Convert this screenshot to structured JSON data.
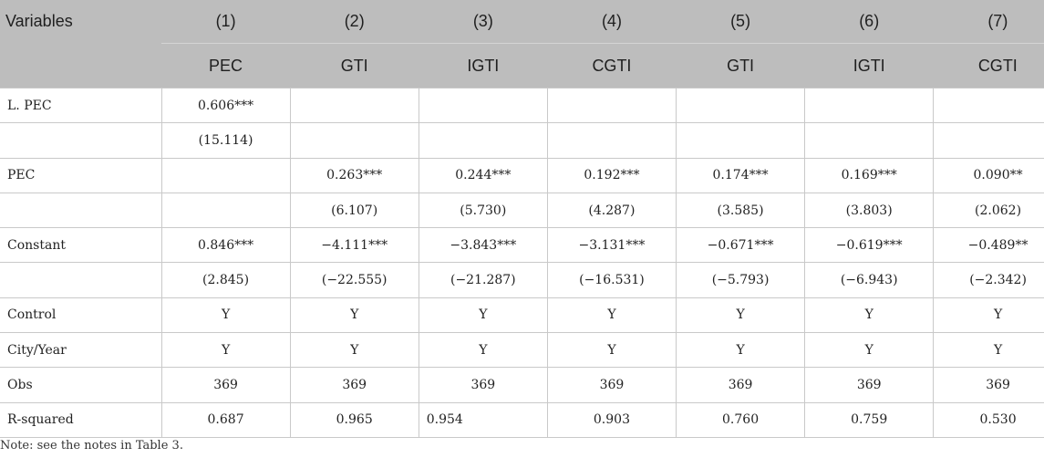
{
  "header": {
    "variables_label": "Variables",
    "columns": [
      "(1)",
      "(2)",
      "(3)",
      "(4)",
      "(5)",
      "(6)",
      "(7)"
    ],
    "dependent_vars": [
      "PEC",
      "GTI",
      "IGTI",
      "CGTI",
      "GTI",
      "IGTI",
      "CGTI"
    ]
  },
  "rows": [
    {
      "label": "L. PEC",
      "cells": [
        "0.606***",
        "",
        "",
        "",
        "",
        "",
        ""
      ]
    },
    {
      "label": "",
      "cells": [
        "(15.114)",
        "",
        "",
        "",
        "",
        "",
        ""
      ]
    },
    {
      "label": "PEC",
      "cells": [
        "",
        "0.263***",
        "0.244***",
        "0.192***",
        "0.174***",
        "0.169***",
        "0.090**"
      ]
    },
    {
      "label": "",
      "cells": [
        "",
        "(6.107)",
        "(5.730)",
        "(4.287)",
        "(3.585)",
        "(3.803)",
        "(2.062)"
      ]
    },
    {
      "label": "Constant",
      "cells": [
        "0.846***",
        "−4.111***",
        "−3.843***",
        "−3.131***",
        "−0.671***",
        "−0.619***",
        "−0.489**"
      ]
    },
    {
      "label": "",
      "cells": [
        "(2.845)",
        "(−22.555)",
        "(−21.287)",
        "(−16.531)",
        "(−5.793)",
        "(−6.943)",
        "(−2.342)"
      ]
    },
    {
      "label": "Control",
      "cells": [
        "Y",
        "Y",
        "Y",
        "Y",
        "Y",
        "Y",
        "Y"
      ]
    },
    {
      "label": "City/Year",
      "cells": [
        "Y",
        "Y",
        "Y",
        "Y",
        "Y",
        "Y",
        "Y"
      ]
    },
    {
      "label": "Obs",
      "cells": [
        "369",
        "369",
        "369",
        "369",
        "369",
        "369",
        "369"
      ]
    },
    {
      "label": "R-squared",
      "cells": [
        "0.687",
        "0.965",
        "0.954",
        "0.903",
        "0.760",
        "0.759",
        "0.530"
      ]
    }
  ],
  "note": "Note: see the notes in Table 3."
}
